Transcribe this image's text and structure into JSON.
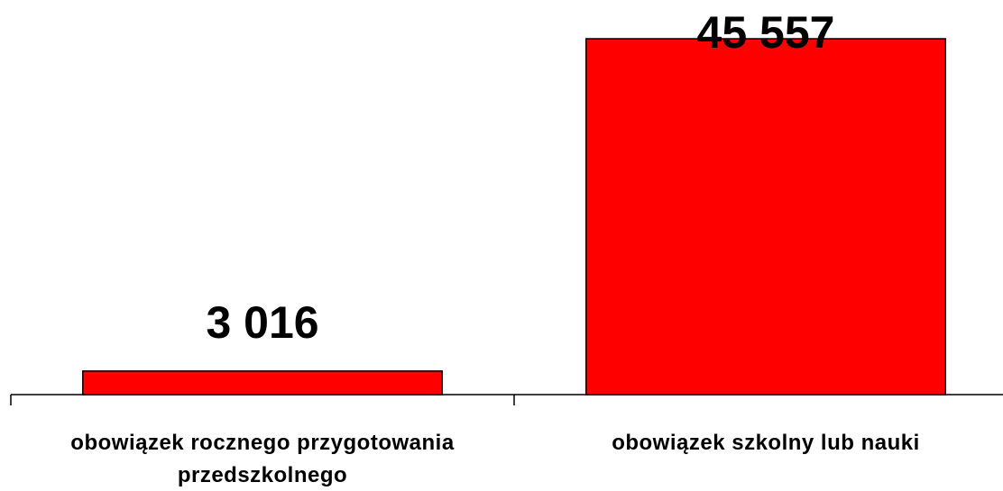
{
  "chart_data": {
    "type": "bar",
    "categories": [
      "obowiązek rocznego przygotowania przedszkolnego",
      "obowiązek szkolny lub nauki"
    ],
    "values": [
      3016,
      45557
    ],
    "value_labels": [
      "3 016",
      "45 557"
    ],
    "color": "#ff0000"
  }
}
